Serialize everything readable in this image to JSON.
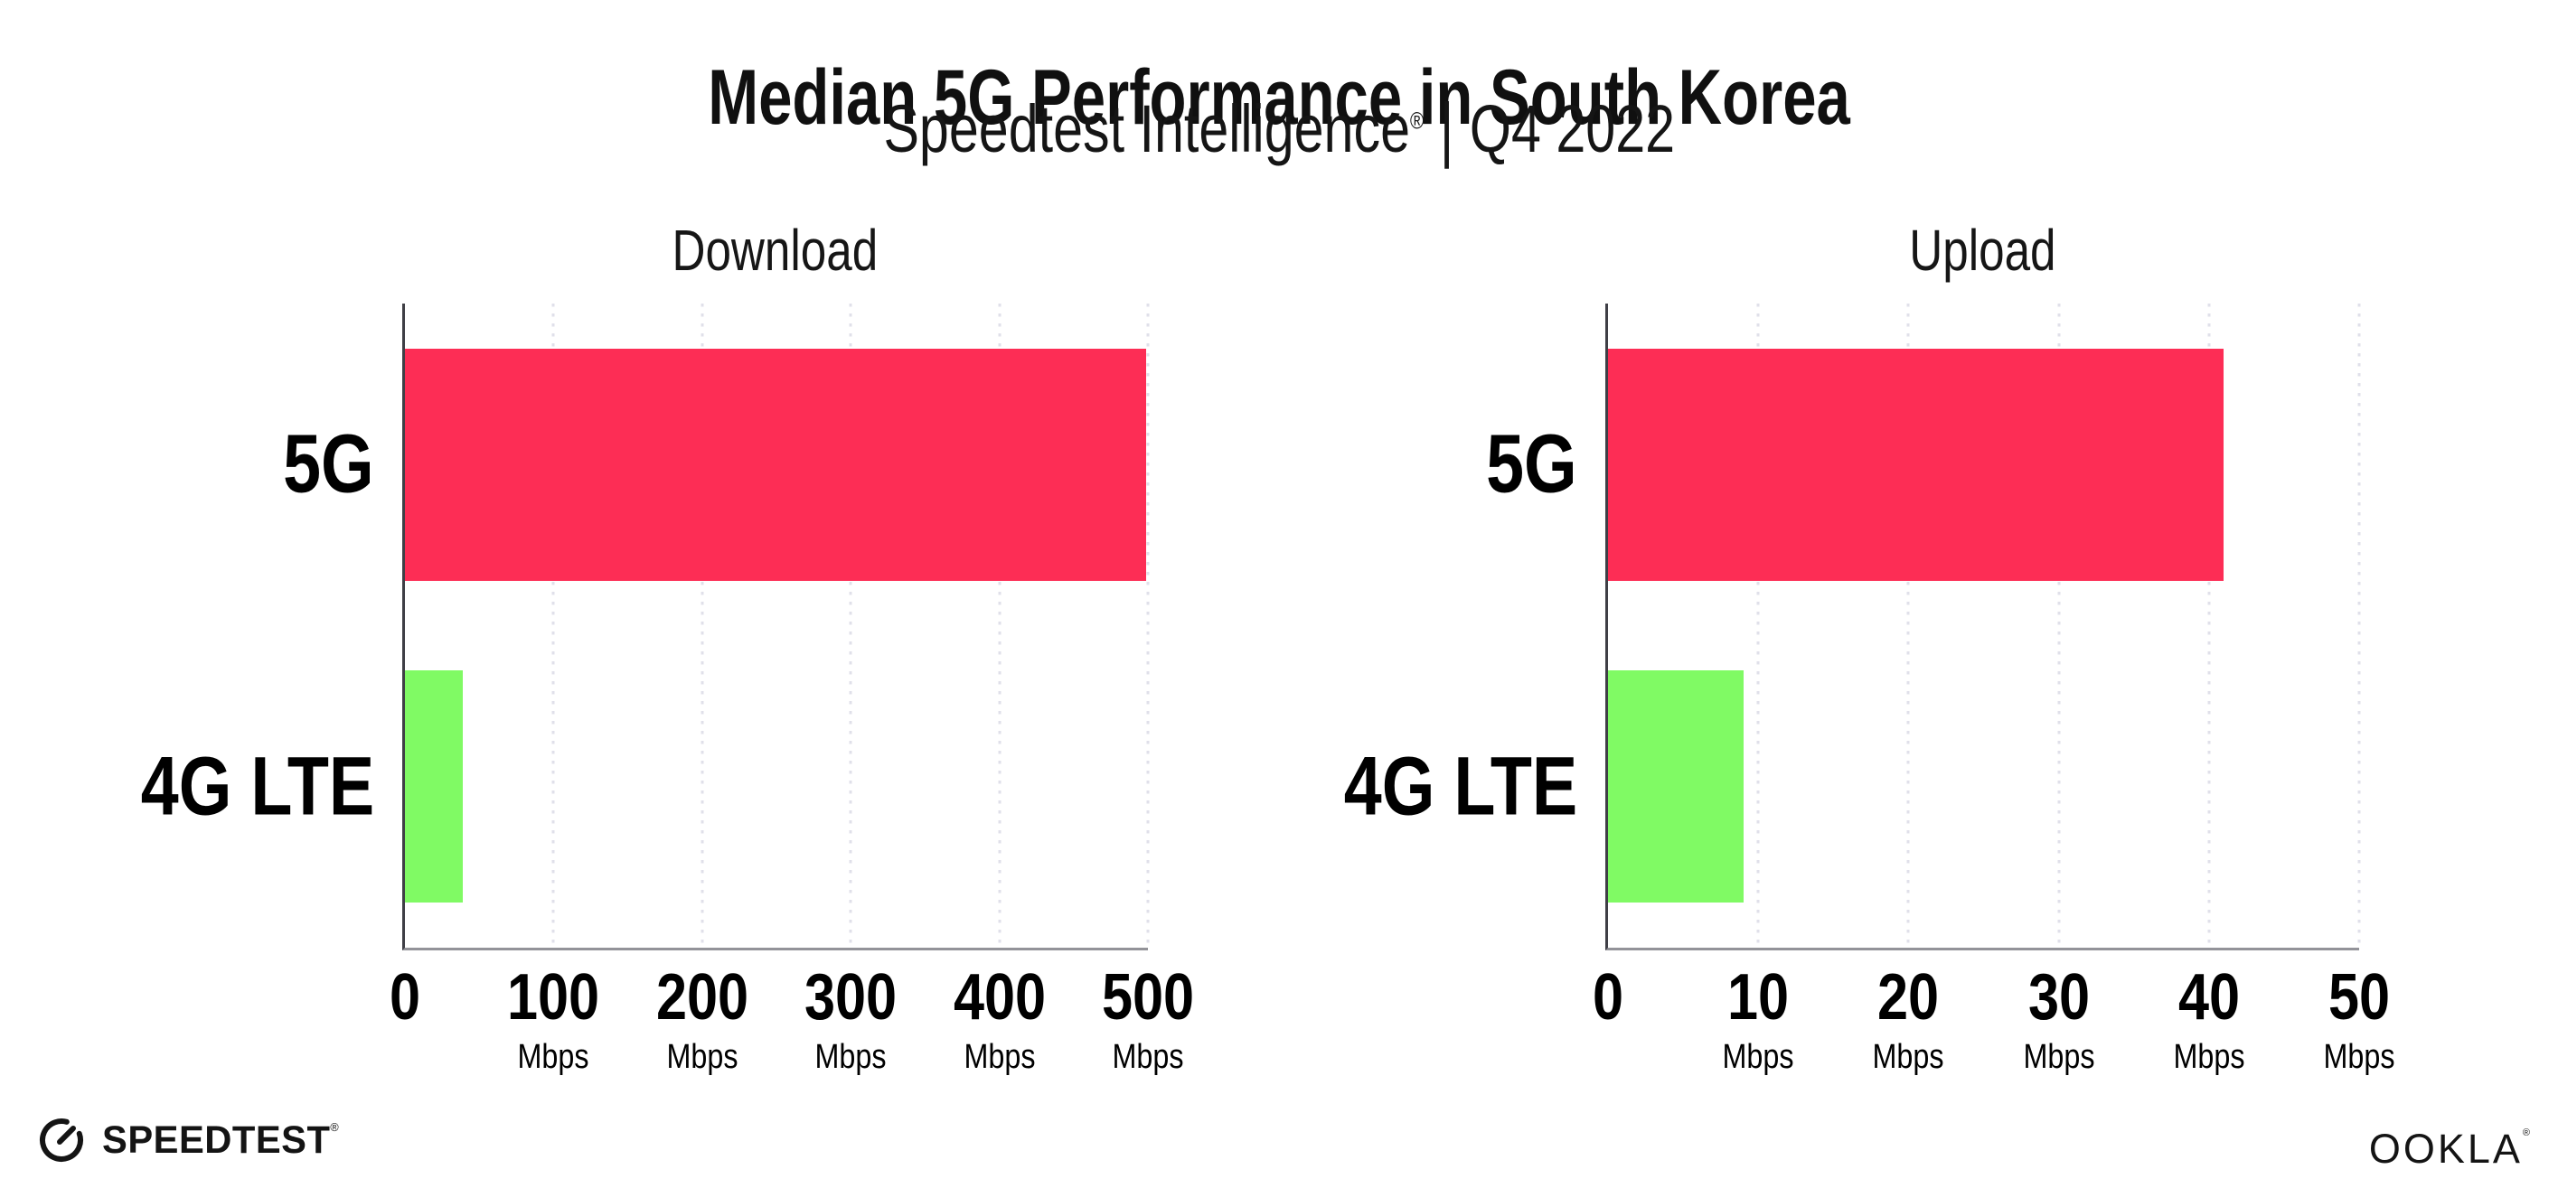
{
  "header": {
    "title": "Median 5G Performance in South Korea",
    "subtitle": {
      "brand": "Speedtest Intelligence",
      "registered": "®",
      "separator": "|",
      "period": "Q4 2022"
    }
  },
  "chart_data": [
    {
      "type": "bar",
      "orientation": "horizontal",
      "title": "Download",
      "categories": [
        "5G",
        "4G LTE"
      ],
      "values": [
        499,
        39
      ],
      "value_unit": "Mbps",
      "xlim": [
        0,
        500
      ],
      "xticks": [
        0,
        100,
        200,
        300,
        400,
        500
      ],
      "xtick_unit_label": "Mbps",
      "bar_colors": [
        "#FD2D55",
        "#80FA64"
      ],
      "grid": "vertical-dotted",
      "legend": "none"
    },
    {
      "type": "bar",
      "orientation": "horizontal",
      "title": "Upload",
      "categories": [
        "5G",
        "4G LTE"
      ],
      "values": [
        41,
        9
      ],
      "value_unit": "Mbps",
      "xlim": [
        0,
        50
      ],
      "xticks": [
        0,
        10,
        20,
        30,
        40,
        50
      ],
      "xtick_unit_label": "Mbps",
      "bar_colors": [
        "#FD2D55",
        "#80FA64"
      ],
      "grid": "vertical-dotted",
      "legend": "none"
    }
  ],
  "footer": {
    "speedtest": {
      "text": "SPEEDTEST",
      "registered": "®"
    },
    "ookla": {
      "text": "OOKLA",
      "registered": "®"
    }
  },
  "colors": {
    "bar_5g": "#FD2D55",
    "bar_4g_lte": "#80FA64",
    "gridline": "#E0E0EA",
    "y_axis_line": "#3F3F46",
    "x_axis_line": "#939399",
    "text": "#101010"
  }
}
